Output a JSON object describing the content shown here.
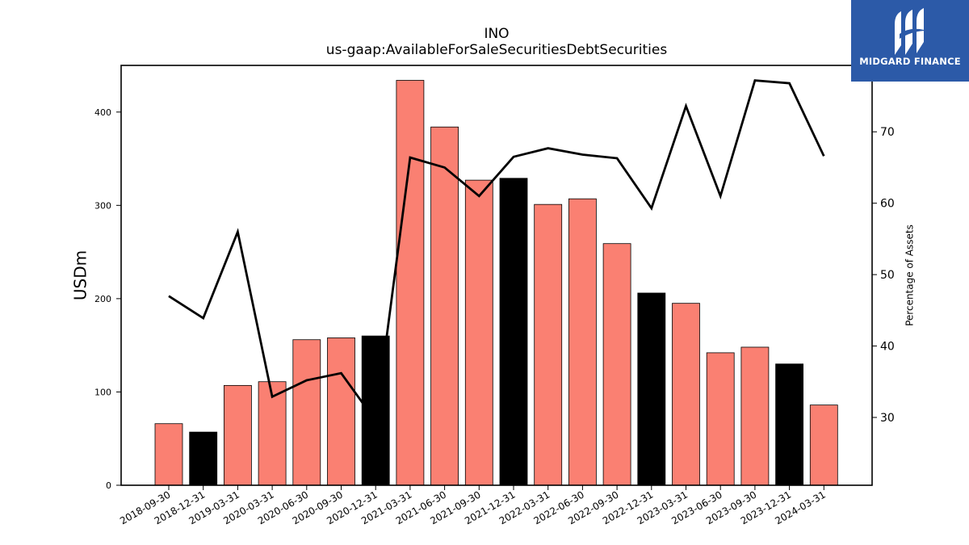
{
  "header": {
    "title": "INO",
    "subtitle": "us-gaap:AvailableForSaleSecuritiesDebtSecurities"
  },
  "logo": {
    "text": "MIDGARD FINANCE",
    "background": "#2c5aa8"
  },
  "chart_data": {
    "type": "bar",
    "categories": [
      "2018-09-30",
      "2018-12-31",
      "2019-03-31",
      "2020-03-31",
      "2020-06-30",
      "2020-09-30",
      "2020-12-31",
      "2021-03-31",
      "2021-06-30",
      "2021-09-30",
      "2021-12-31",
      "2022-03-31",
      "2022-06-30",
      "2022-09-30",
      "2022-12-31",
      "2023-03-31",
      "2023-06-30",
      "2023-09-30",
      "2023-12-31",
      "2024-03-31"
    ],
    "series": [
      {
        "type": "bar",
        "axis": "left",
        "values": [
          66,
          57,
          107,
          111,
          156,
          158,
          160,
          434,
          384,
          327,
          329,
          301,
          307,
          259,
          206,
          195,
          142,
          148,
          130,
          86
        ],
        "colors": [
          "#fa8072",
          "#000000",
          "#fa8072",
          "#fa8072",
          "#fa8072",
          "#fa8072",
          "#000000",
          "#fa8072",
          "#fa8072",
          "#fa8072",
          "#000000",
          "#fa8072",
          "#fa8072",
          "#fa8072",
          "#000000",
          "#fa8072",
          "#fa8072",
          "#fa8072",
          "#000000",
          "#fa8072"
        ]
      },
      {
        "type": "line",
        "axis": "right",
        "color": "#000000",
        "values": [
          47.0,
          43.9,
          56.0,
          32.9,
          35.2,
          36.2,
          29.5,
          66.4,
          65.0,
          61.0,
          66.5,
          67.7,
          66.8,
          66.3,
          59.3,
          73.6,
          61.0,
          77.2,
          76.8,
          66.6
        ]
      }
    ],
    "ylabel": "USDm",
    "y2label": "Percentage of Assets",
    "ylim": [
      0,
      450
    ],
    "y2lim": [
      20.5,
      79.3
    ],
    "yticks": [
      0,
      100,
      200,
      300,
      400
    ],
    "y2ticks": [
      30,
      40,
      50,
      60,
      70
    ],
    "grid": false
  }
}
